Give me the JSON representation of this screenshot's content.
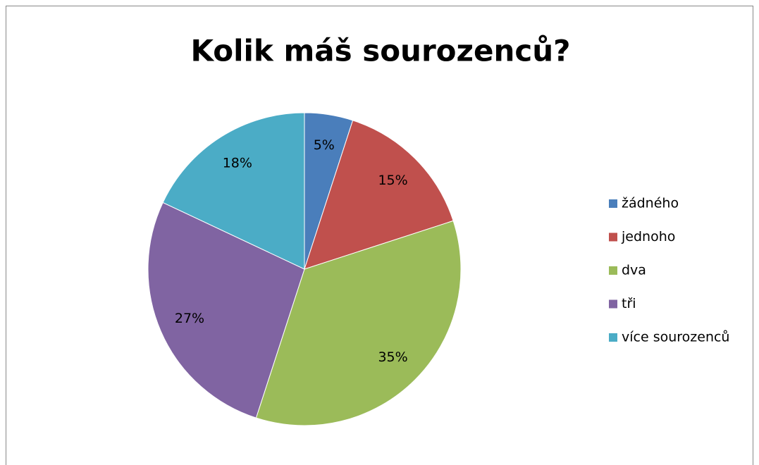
{
  "chart_data": {
    "type": "pie",
    "title": "Kolik máš sourozenců?",
    "categories": [
      "žádného",
      "jednoho",
      "dva",
      "tři",
      "více sourozenců"
    ],
    "values": [
      5,
      15,
      35,
      27,
      18
    ],
    "value_labels": [
      "5%",
      "15%",
      "35%",
      "27%",
      "18%"
    ],
    "colors": [
      "#4a7ebb",
      "#c0504d",
      "#9bbb59",
      "#8064a2",
      "#4bacc6"
    ],
    "legend": "right"
  }
}
